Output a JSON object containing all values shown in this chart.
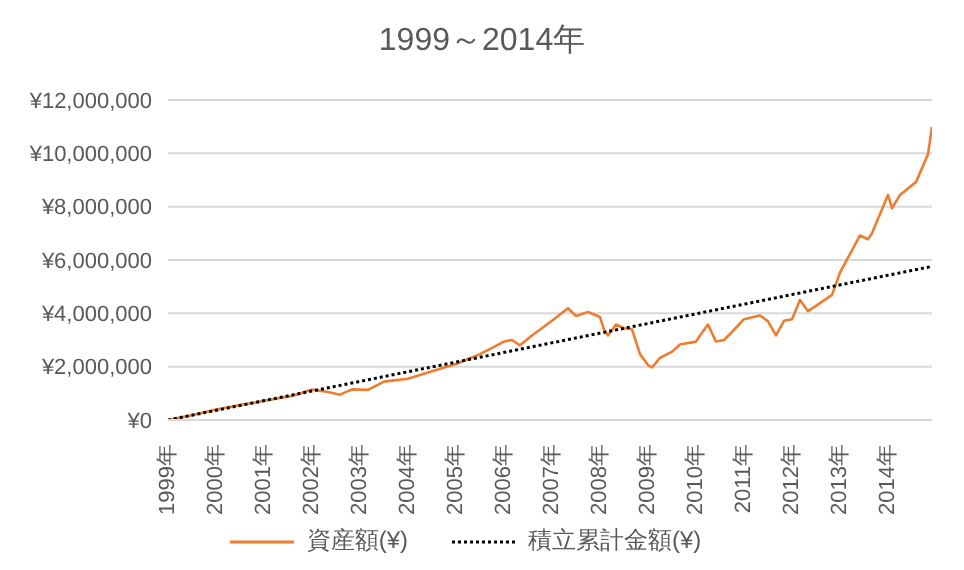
{
  "chart_data": {
    "type": "line",
    "title": "1999～2014年",
    "xlim": [
      "1999-01",
      "2014-12"
    ],
    "xticks": [
      {
        "value": "1999-01",
        "label": "1999年"
      },
      {
        "value": "2000-01",
        "label": "2000年"
      },
      {
        "value": "2001-01",
        "label": "2001年"
      },
      {
        "value": "2002-01",
        "label": "2002年"
      },
      {
        "value": "2003-01",
        "label": "2003年"
      },
      {
        "value": "2004-01",
        "label": "2004年"
      },
      {
        "value": "2005-01",
        "label": "2005年"
      },
      {
        "value": "2006-01",
        "label": "2006年"
      },
      {
        "value": "2007-01",
        "label": "2007年"
      },
      {
        "value": "2008-01",
        "label": "2008年"
      },
      {
        "value": "2009-01",
        "label": "2009年"
      },
      {
        "value": "2010-01",
        "label": "2010年"
      },
      {
        "value": "2011-01",
        "label": "2011年"
      },
      {
        "value": "2012-01",
        "label": "2012年"
      },
      {
        "value": "2013-01",
        "label": "2013年"
      },
      {
        "value": "2014-01",
        "label": "2014年"
      }
    ],
    "ylim": [
      0,
      12000000
    ],
    "yticks": [
      {
        "value": 0,
        "label": "¥0"
      },
      {
        "value": 2000000,
        "label": "¥2,000,000"
      },
      {
        "value": 4000000,
        "label": "¥4,000,000"
      },
      {
        "value": 6000000,
        "label": "¥6,000,000"
      },
      {
        "value": 8000000,
        "label": "¥8,000,000"
      },
      {
        "value": 10000000,
        "label": "¥10,000,000"
      },
      {
        "value": 12000000,
        "label": "¥12,000,000"
      }
    ],
    "grid": "y",
    "legend": "bottom",
    "marker": "none",
    "series": [
      {
        "name": "資産額(¥)",
        "color": "#ed7d31",
        "line_style": "solid",
        "x": [
          "1999-01",
          "1999-07",
          "2000-01",
          "2000-07",
          "2001-01",
          "2001-08",
          "2002-01",
          "2002-05",
          "2002-08",
          "2002-11",
          "2003-03",
          "2003-07",
          "2004-01",
          "2004-07",
          "2005-01",
          "2005-07",
          "2006-01",
          "2006-03",
          "2006-05",
          "2006-08",
          "2007-01",
          "2007-05",
          "2007-07",
          "2007-10",
          "2008-01",
          "2008-02",
          "2008-03",
          "2008-05",
          "2008-07",
          "2008-09",
          "2008-11",
          "2009-01",
          "2009-02",
          "2009-04",
          "2009-07",
          "2009-09",
          "2010-01",
          "2010-02",
          "2010-04",
          "2010-06",
          "2010-08",
          "2010-10",
          "2011-01",
          "2011-05",
          "2011-07",
          "2011-09",
          "2011-11",
          "2012-01",
          "2012-03",
          "2012-05",
          "2012-07",
          "2012-11",
          "2013-01",
          "2013-06",
          "2013-08",
          "2013-09",
          "2014-01",
          "2014-02",
          "2014-04",
          "2014-08",
          "2014-11",
          "2014-12"
        ],
        "values": [
          0,
          180000,
          390000,
          560000,
          720000,
          900000,
          1140000,
          1050000,
          950000,
          1150000,
          1130000,
          1440000,
          1550000,
          1830000,
          2100000,
          2470000,
          2940000,
          3000000,
          2800000,
          3170000,
          3720000,
          4190000,
          3900000,
          4050000,
          3860000,
          3390000,
          3170000,
          3580000,
          3440000,
          3400000,
          2470000,
          2060000,
          1970000,
          2330000,
          2560000,
          2830000,
          2940000,
          3170000,
          3580000,
          2940000,
          3000000,
          3300000,
          3780000,
          3920000,
          3700000,
          3170000,
          3720000,
          3780000,
          4500000,
          4080000,
          4280000,
          4690000,
          5530000,
          6920000,
          6780000,
          7000000,
          8440000,
          7940000,
          8440000,
          8920000,
          9970000,
          11000000
        ]
      },
      {
        "name": "積立累計金額(¥)",
        "color": "#000000",
        "line_style": "dotted",
        "x": [
          "1999-01",
          "2014-12"
        ],
        "values": [
          0,
          5760000
        ]
      }
    ]
  }
}
